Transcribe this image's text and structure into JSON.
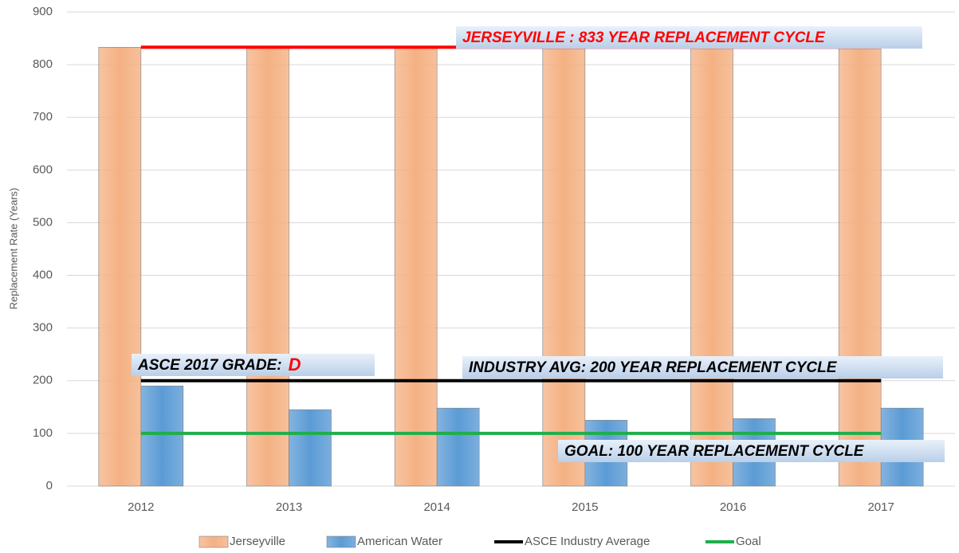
{
  "chart_data": {
    "type": "bar",
    "y_axis_label": "Replacement Rate (Years)",
    "categories": [
      "2012",
      "2013",
      "2014",
      "2015",
      "2016",
      "2017"
    ],
    "series": [
      {
        "name": "Jerseyville",
        "type": "bar",
        "color": "#f4b183",
        "values": [
          833,
          833,
          833,
          833,
          833,
          833
        ]
      },
      {
        "name": "American Water",
        "type": "bar",
        "color": "#5b9bd5",
        "values": [
          190,
          145,
          148,
          125,
          128,
          148
        ]
      },
      {
        "name": "ASCE Industry Average",
        "type": "line",
        "color": "#000000",
        "values": [
          200,
          200,
          200,
          200,
          200,
          200
        ]
      },
      {
        "name": "Goal",
        "type": "line",
        "color": "#1fae4a",
        "values": [
          100,
          100,
          100,
          100,
          100,
          100
        ]
      }
    ],
    "ylim": [
      0,
      900
    ],
    "yticks": [
      0,
      100,
      200,
      300,
      400,
      500,
      600,
      700,
      800,
      900
    ],
    "grid": true,
    "legend": "bottom",
    "annotations": [
      {
        "text": "JERSEYVILLE : 833 YEAR REPLACEMENT CYCLE",
        "color": "#ff0000",
        "value": 833
      },
      {
        "text": "ASCE 2017 GRADE:",
        "highlight": "D",
        "highlight_color": "#ff0000"
      },
      {
        "text": "INDUSTRY AVG:  200 YEAR REPLACEMENT CYCLE"
      },
      {
        "text": "GOAL:  100 YEAR REPLACEMENT CYCLE"
      }
    ]
  }
}
